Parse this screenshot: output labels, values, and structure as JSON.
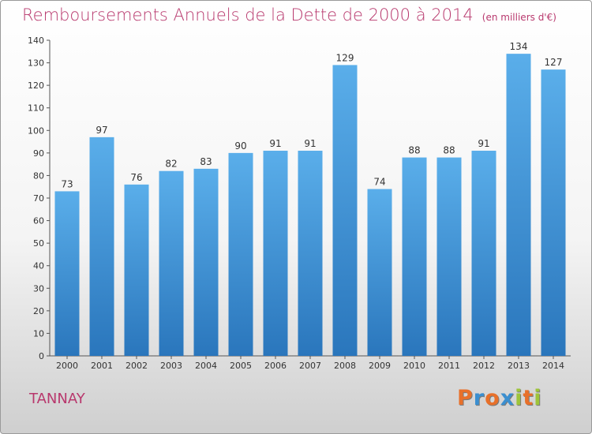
{
  "title": "Remboursements Annuels de la Dette de 2000 à 2014",
  "subtitle": "(en milliers d'€)",
  "commune": "TANNAY",
  "logo": {
    "letters": [
      {
        "char": "P",
        "color": "#e8702a"
      },
      {
        "char": "r",
        "color": "#3b8fd0"
      },
      {
        "char": "o",
        "color": "#e8702a"
      },
      {
        "char": "x",
        "color": "#3b8fd0"
      },
      {
        "char": "i",
        "color": "#9ec43a"
      },
      {
        "char": "t",
        "color": "#e8702a"
      },
      {
        "char": "i",
        "color": "#9ec43a"
      }
    ]
  },
  "chart_data": {
    "type": "bar",
    "categories": [
      "2000",
      "2001",
      "2002",
      "2003",
      "2004",
      "2005",
      "2006",
      "2007",
      "2008",
      "2009",
      "2010",
      "2011",
      "2012",
      "2013",
      "2014"
    ],
    "values": [
      73,
      97,
      76,
      82,
      83,
      90,
      91,
      91,
      129,
      74,
      88,
      88,
      91,
      134,
      127
    ],
    "title": "Remboursements Annuels de la Dette de 2000 à 2014",
    "subtitle": "(en milliers d'€)",
    "xlabel": "",
    "ylabel": "",
    "ylim": [
      0,
      140
    ],
    "yticks": [
      0,
      10,
      20,
      30,
      40,
      50,
      60,
      70,
      80,
      90,
      100,
      110,
      120,
      130,
      140
    ],
    "grid": false,
    "bar_color": "#4a9de0",
    "bar_color_dark": "#2f7fc4"
  }
}
